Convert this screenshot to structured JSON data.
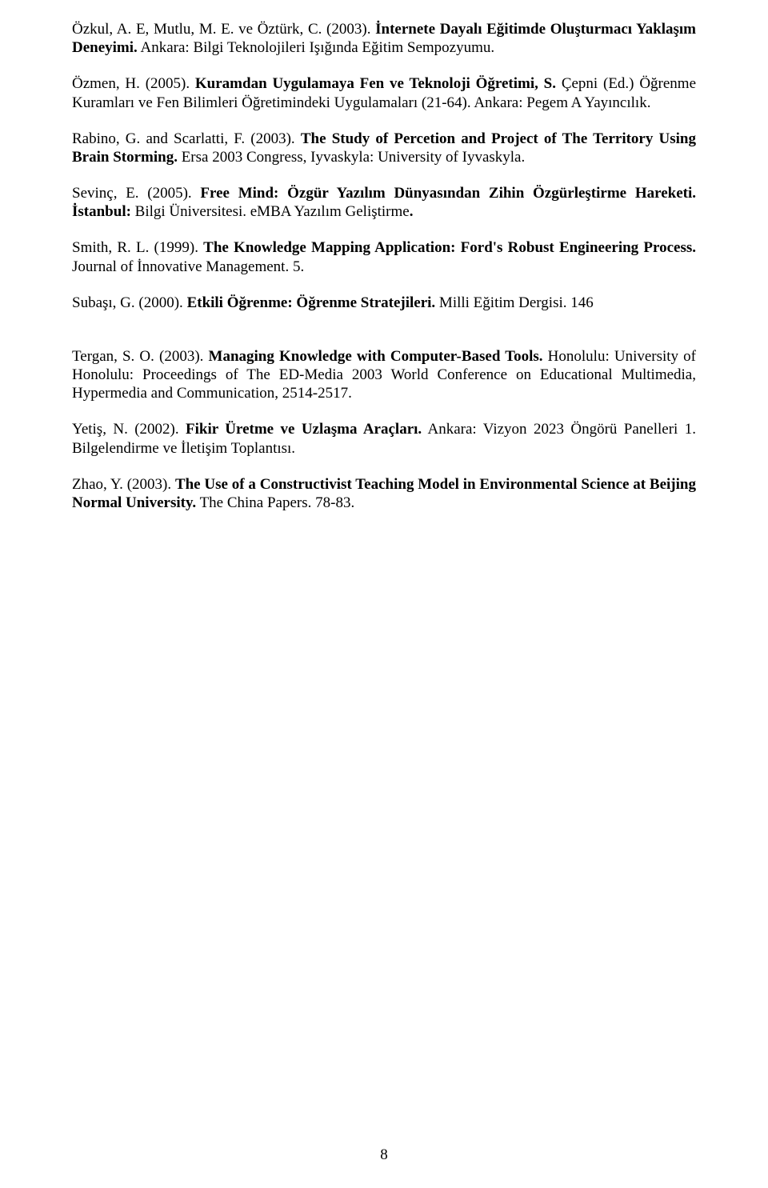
{
  "refs": [
    {
      "p1": "Özkul,  A.  E,  Mutlu,  M.  E.  ve  Öztürk,  C.  (2003).  ",
      "b1": "İnternete  Dayalı  Eğitimde  Oluşturmacı  Yaklaşım Deneyimi.",
      "p2": " Ankara: Bilgi Teknolojileri Işığında Eğitim Sempozyumu."
    },
    {
      "p1": "Özmen,  H.  (2005).  ",
      "b1": "Kuramdan  Uygulamaya  Fen  ve  Teknoloji  Öğretimi,  S.",
      "p2": "  Çepni  (Ed.)  Öğrenme Kuramları ve Fen Bilimleri Öğretimindeki Uygulamaları (21-64). Ankara: Pegem A Yayıncılık."
    },
    {
      "p1": "Rabino,  G.  and  Scarlatti,  F.  (2003).  ",
      "b1": "The  Study  of  Percetion  and  Project  of  The  Territory  Using  Brain Storming.",
      "p2": " Ersa 2003 Congress, Iyvaskyla: University of Iyvaskyla."
    },
    {
      "p1": "Sevinç, E. (2005). ",
      "b1": "Free Mind: Özgür Yazılım Dünyasından Zihin  Özgürleştirme Hareketi. İstanbul:",
      "p2": " Bilgi Üniversitesi. eMBA  Yazılım Geliştirme",
      "b2": "."
    },
    {
      "p1": "Smith,  R.  L.  (1999).  ",
      "b1": "The  Knowledge  Mapping  Application:  Ford's  Robust  Engineering  Process.",
      "p2": " Journal of İnnovative Management. 5."
    },
    {
      "p1": "Subaşı, G. (2000). ",
      "b1": "Etkili Öğrenme: Öğrenme Stratejileri.",
      "p2": " Milli Eğitim Dergisi. 146"
    },
    {
      "p1": "Tergan,  S.  O.  (2003).  ",
      "b1": "Managing  Knowledge  with  Computer-Based  Tools.",
      "p2": "  Honolulu:  University  of Honolulu:  Proceedings  of    The  ED-Media  2003  World  Conference  on  Educational  Multimedia, Hypermedia and Communication, 2514-2517."
    },
    {
      "p1": "Yetiş,  N.  (2002).  ",
      "b1": "Fikir  Üretme  ve  Uzlaşma  Araçları.",
      "p2": "  Ankara:  Vizyon  2023  Öngörü  Panelleri  1. Bilgelendirme ve İletişim Toplantısı."
    },
    {
      "p1": "Zhao, Y. (2003). ",
      "b1": "The Use of a Constructivist Teaching Model in Environmental Science at Beijing Normal University.",
      "p2": " The China Papers. 78-83."
    }
  ],
  "pageNumber": "8",
  "specialGap": 44
}
